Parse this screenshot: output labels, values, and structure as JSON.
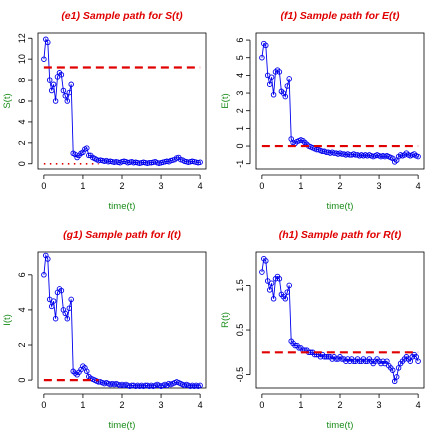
{
  "figure": {
    "background": "#ffffff"
  },
  "styles": {
    "title_color": "#e00000",
    "axis_label_color": "#1a8c1a",
    "series_color": "#0000ee",
    "reference_line_color": "#e00000",
    "axis_color": "#000000"
  },
  "chart_data": [
    {
      "type": "scatter",
      "title": "(e1) Sample path for S(t)",
      "xlabel": "time(t)",
      "ylabel": "S(t)",
      "xlim": [
        -0.15,
        4.15
      ],
      "ylim": [
        -0.5,
        12.5
      ],
      "xticks": [
        0,
        1,
        2,
        3,
        4
      ],
      "yticks": [
        0,
        2,
        4,
        6,
        8,
        10,
        12
      ],
      "reference_lines": [
        {
          "style": "dashed",
          "value": 9.2,
          "x_range": [
            0,
            4
          ]
        },
        {
          "style": "dotted",
          "value": 0,
          "x_range": [
            0,
            1.4
          ]
        }
      ],
      "series": [
        {
          "style": "line-with-circles",
          "x": [
            0.0,
            0.05,
            0.1,
            0.15,
            0.2,
            0.25,
            0.3,
            0.35,
            0.4,
            0.45,
            0.5,
            0.55,
            0.6,
            0.65,
            0.7,
            0.75,
            0.8,
            0.85,
            0.9,
            0.95,
            1.0,
            1.05,
            1.1,
            1.15,
            1.2,
            1.25,
            1.3,
            1.35,
            1.4,
            1.45,
            1.5,
            1.55,
            1.6,
            1.65,
            1.7,
            1.75,
            1.8,
            1.85,
            1.9,
            1.95,
            2.0,
            2.05,
            2.1,
            2.15,
            2.2,
            2.25,
            2.3,
            2.35,
            2.4,
            2.45,
            2.5,
            2.55,
            2.6,
            2.65,
            2.7,
            2.75,
            2.8,
            2.85,
            2.9,
            2.95,
            3.0,
            3.05,
            3.1,
            3.15,
            3.2,
            3.25,
            3.3,
            3.35,
            3.4,
            3.45,
            3.5,
            3.55,
            3.6,
            3.65,
            3.7,
            3.75,
            3.8,
            3.85,
            3.9,
            3.95,
            4.0
          ],
          "y": [
            10.0,
            11.9,
            11.6,
            8.0,
            7.0,
            7.6,
            6.0,
            8.3,
            8.7,
            8.5,
            7.0,
            6.5,
            6.0,
            6.8,
            7.6,
            1.0,
            0.9,
            0.6,
            0.8,
            1.0,
            1.1,
            1.4,
            1.5,
            0.8,
            0.8,
            0.6,
            0.5,
            0.4,
            0.3,
            0.35,
            0.3,
            0.25,
            0.3,
            0.2,
            0.25,
            0.2,
            0.15,
            0.2,
            0.15,
            0.1,
            0.2,
            0.25,
            0.2,
            0.1,
            0.15,
            0.2,
            0.1,
            0.15,
            0.1,
            0.05,
            0.1,
            0.15,
            0.1,
            0.05,
            0.1,
            0.1,
            0.15,
            0.2,
            0.1,
            0.05,
            0.1,
            0.15,
            0.2,
            0.25,
            0.2,
            0.3,
            0.35,
            0.4,
            0.55,
            0.6,
            0.4,
            0.35,
            0.25,
            0.2,
            0.15,
            0.2,
            0.25,
            0.2,
            0.15,
            0.1,
            0.15
          ]
        }
      ]
    },
    {
      "type": "scatter",
      "title": "(f1) Sample path for E(t)",
      "xlabel": "time(t)",
      "ylabel": "E(t)",
      "xlim": [
        -0.15,
        4.15
      ],
      "ylim": [
        -1.3,
        6.4
      ],
      "xticks": [
        0,
        1,
        2,
        3,
        4
      ],
      "yticks": [
        -1,
        0,
        1,
        2,
        3,
        4,
        5,
        6
      ],
      "reference_lines": [
        {
          "style": "dashed",
          "value": 0,
          "x_range": [
            0,
            4
          ]
        }
      ],
      "series": [
        {
          "style": "line-with-circles",
          "x": [
            0.0,
            0.05,
            0.1,
            0.15,
            0.2,
            0.25,
            0.3,
            0.35,
            0.4,
            0.45,
            0.5,
            0.55,
            0.6,
            0.65,
            0.7,
            0.75,
            0.8,
            0.85,
            0.9,
            0.95,
            1.0,
            1.05,
            1.1,
            1.15,
            1.2,
            1.25,
            1.3,
            1.35,
            1.4,
            1.45,
            1.5,
            1.55,
            1.6,
            1.65,
            1.7,
            1.75,
            1.8,
            1.85,
            1.9,
            1.95,
            2.0,
            2.05,
            2.1,
            2.15,
            2.2,
            2.25,
            2.3,
            2.35,
            2.4,
            2.45,
            2.5,
            2.55,
            2.6,
            2.65,
            2.7,
            2.75,
            2.8,
            2.85,
            2.9,
            2.95,
            3.0,
            3.05,
            3.1,
            3.15,
            3.2,
            3.25,
            3.3,
            3.35,
            3.4,
            3.45,
            3.5,
            3.55,
            3.6,
            3.65,
            3.7,
            3.75,
            3.8,
            3.85,
            3.9,
            3.95,
            4.0
          ],
          "y": [
            5.0,
            5.8,
            5.7,
            4.0,
            3.5,
            3.9,
            2.9,
            4.2,
            4.3,
            4.2,
            3.1,
            3.0,
            2.8,
            3.4,
            3.8,
            0.4,
            0.2,
            0.15,
            0.25,
            0.3,
            0.35,
            0.3,
            0.2,
            0.1,
            0.0,
            -0.05,
            -0.1,
            -0.15,
            -0.2,
            -0.2,
            -0.25,
            -0.3,
            -0.3,
            -0.35,
            -0.35,
            -0.4,
            -0.35,
            -0.4,
            -0.4,
            -0.45,
            -0.4,
            -0.45,
            -0.45,
            -0.5,
            -0.45,
            -0.5,
            -0.5,
            -0.45,
            -0.5,
            -0.5,
            -0.55,
            -0.5,
            -0.55,
            -0.5,
            -0.55,
            -0.5,
            -0.55,
            -0.6,
            -0.55,
            -0.5,
            -0.55,
            -0.6,
            -0.55,
            -0.6,
            -0.55,
            -0.6,
            -0.65,
            -0.7,
            -0.9,
            -0.8,
            -0.6,
            -0.5,
            -0.55,
            -0.5,
            -0.4,
            -0.5,
            -0.55,
            -0.5,
            -0.45,
            -0.55,
            -0.6
          ]
        }
      ]
    },
    {
      "type": "scatter",
      "title": "(g1) Sample path for I(t)",
      "xlabel": "time(t)",
      "ylabel": "I(t)",
      "xlim": [
        -0.15,
        4.15
      ],
      "ylim": [
        -0.45,
        7.3
      ],
      "xticks": [
        0,
        1,
        2,
        3,
        4
      ],
      "yticks": [
        0,
        2,
        4,
        6
      ],
      "reference_lines": [
        {
          "style": "dashed",
          "value": 0,
          "x_range": [
            0,
            1.4
          ]
        }
      ],
      "series": [
        {
          "style": "line-with-circles",
          "x": [
            0.0,
            0.05,
            0.1,
            0.15,
            0.2,
            0.25,
            0.3,
            0.35,
            0.4,
            0.45,
            0.5,
            0.55,
            0.6,
            0.65,
            0.7,
            0.75,
            0.8,
            0.85,
            0.9,
            0.95,
            1.0,
            1.05,
            1.1,
            1.15,
            1.2,
            1.25,
            1.3,
            1.35,
            1.4,
            1.45,
            1.5,
            1.55,
            1.6,
            1.65,
            1.7,
            1.75,
            1.8,
            1.85,
            1.9,
            1.95,
            2.0,
            2.05,
            2.1,
            2.15,
            2.2,
            2.25,
            2.3,
            2.35,
            2.4,
            2.45,
            2.5,
            2.55,
            2.6,
            2.65,
            2.7,
            2.75,
            2.8,
            2.85,
            2.9,
            2.95,
            3.0,
            3.05,
            3.1,
            3.15,
            3.2,
            3.25,
            3.3,
            3.35,
            3.4,
            3.45,
            3.5,
            3.55,
            3.6,
            3.65,
            3.7,
            3.75,
            3.8,
            3.85,
            3.9,
            3.95,
            4.0
          ],
          "y": [
            6.0,
            7.1,
            6.9,
            4.6,
            4.2,
            4.5,
            3.5,
            5.0,
            5.2,
            5.1,
            4.0,
            3.8,
            3.5,
            4.1,
            4.6,
            0.5,
            0.4,
            0.3,
            0.45,
            0.6,
            0.8,
            0.7,
            0.5,
            0.2,
            0.1,
            0.05,
            0.0,
            -0.05,
            -0.1,
            -0.1,
            -0.15,
            -0.2,
            -0.15,
            -0.2,
            -0.25,
            -0.2,
            -0.25,
            -0.2,
            -0.25,
            -0.3,
            -0.25,
            -0.3,
            -0.25,
            -0.3,
            -0.35,
            -0.3,
            -0.3,
            -0.35,
            -0.3,
            -0.35,
            -0.3,
            -0.35,
            -0.3,
            -0.3,
            -0.35,
            -0.3,
            -0.35,
            -0.3,
            -0.25,
            -0.3,
            -0.35,
            -0.3,
            -0.25,
            -0.3,
            -0.2,
            -0.25,
            -0.2,
            -0.15,
            -0.1,
            -0.15,
            -0.2,
            -0.25,
            -0.3,
            -0.25,
            -0.3,
            -0.35,
            -0.3,
            -0.35,
            -0.3,
            -0.35,
            -0.3
          ]
        }
      ]
    },
    {
      "type": "scatter",
      "title": "(h1) Sample path for R(t)",
      "xlabel": "time(t)",
      "ylabel": "R(t)",
      "xlim": [
        -0.15,
        4.15
      ],
      "ylim": [
        -0.8,
        2.25
      ],
      "xticks": [
        0,
        1,
        2,
        3,
        4
      ],
      "yticks": [
        -0.5,
        0.5,
        1.5
      ],
      "reference_lines": [
        {
          "style": "dashed",
          "value": 0,
          "x_range": [
            0,
            4
          ]
        }
      ],
      "series": [
        {
          "style": "line-with-circles",
          "x": [
            0.0,
            0.05,
            0.1,
            0.15,
            0.2,
            0.25,
            0.3,
            0.35,
            0.4,
            0.45,
            0.5,
            0.55,
            0.6,
            0.65,
            0.7,
            0.75,
            0.8,
            0.85,
            0.9,
            0.95,
            1.0,
            1.05,
            1.1,
            1.15,
            1.2,
            1.25,
            1.3,
            1.35,
            1.4,
            1.45,
            1.5,
            1.55,
            1.6,
            1.65,
            1.7,
            1.75,
            1.8,
            1.85,
            1.9,
            1.95,
            2.0,
            2.05,
            2.1,
            2.15,
            2.2,
            2.25,
            2.3,
            2.35,
            2.4,
            2.45,
            2.5,
            2.55,
            2.6,
            2.65,
            2.7,
            2.75,
            2.8,
            2.85,
            2.9,
            2.95,
            3.0,
            3.05,
            3.1,
            3.15,
            3.2,
            3.25,
            3.3,
            3.35,
            3.4,
            3.45,
            3.5,
            3.55,
            3.6,
            3.65,
            3.7,
            3.75,
            3.8,
            3.85,
            3.9,
            3.95,
            4.0
          ],
          "y": [
            1.8,
            2.1,
            2.05,
            1.6,
            1.4,
            1.55,
            1.2,
            1.65,
            1.7,
            1.65,
            1.3,
            1.25,
            1.2,
            1.35,
            1.5,
            0.25,
            0.2,
            0.15,
            0.15,
            0.1,
            0.1,
            0.05,
            0.05,
            0.05,
            0.0,
            0.0,
            0.0,
            -0.05,
            -0.05,
            -0.05,
            -0.1,
            -0.05,
            -0.1,
            -0.1,
            -0.1,
            -0.1,
            -0.15,
            -0.1,
            -0.15,
            -0.15,
            -0.1,
            -0.15,
            -0.15,
            -0.2,
            -0.15,
            -0.2,
            -0.15,
            -0.2,
            -0.2,
            -0.15,
            -0.2,
            -0.2,
            -0.15,
            -0.2,
            -0.2,
            -0.15,
            -0.2,
            -0.25,
            -0.2,
            -0.15,
            -0.2,
            -0.25,
            -0.2,
            -0.25,
            -0.2,
            -0.3,
            -0.35,
            -0.4,
            -0.65,
            -0.55,
            -0.35,
            -0.25,
            -0.2,
            -0.15,
            -0.1,
            -0.15,
            -0.2,
            -0.1,
            -0.05,
            -0.1,
            -0.2
          ]
        }
      ]
    }
  ]
}
